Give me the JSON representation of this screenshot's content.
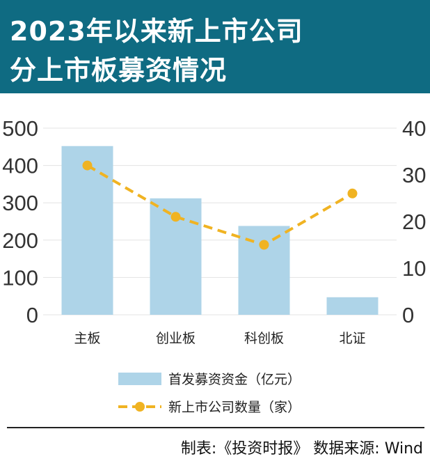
{
  "header": {
    "title_line1": "2023年以来新上市公司",
    "title_line2": "分上市板募资情况"
  },
  "footer": {
    "source": "制表:《投资时报》 数据来源: Wind"
  },
  "colors": {
    "header_bg": "#0f6b82",
    "bar": "#aed4e8",
    "line": "#f0b322"
  },
  "chart_data": {
    "type": "bar",
    "categories": [
      "主板",
      "创业板",
      "科创板",
      "北证"
    ],
    "series": [
      {
        "name": "首发募资资金（亿元）",
        "type": "bar",
        "axis": "left",
        "values": [
          452,
          312,
          238,
          47
        ]
      },
      {
        "name": "新上市公司数量（家）",
        "type": "line",
        "axis": "right",
        "values": [
          32,
          21,
          15,
          26
        ]
      }
    ],
    "y_left": {
      "ylim": [
        0,
        500
      ],
      "ticks": [
        "0",
        "100",
        "200",
        "300",
        "400",
        "500"
      ]
    },
    "y_right": {
      "ylim": [
        0,
        40
      ],
      "ticks": [
        "0",
        "10",
        "20",
        "30",
        "40"
      ]
    },
    "grid": true,
    "legend_placement": "bottom"
  }
}
